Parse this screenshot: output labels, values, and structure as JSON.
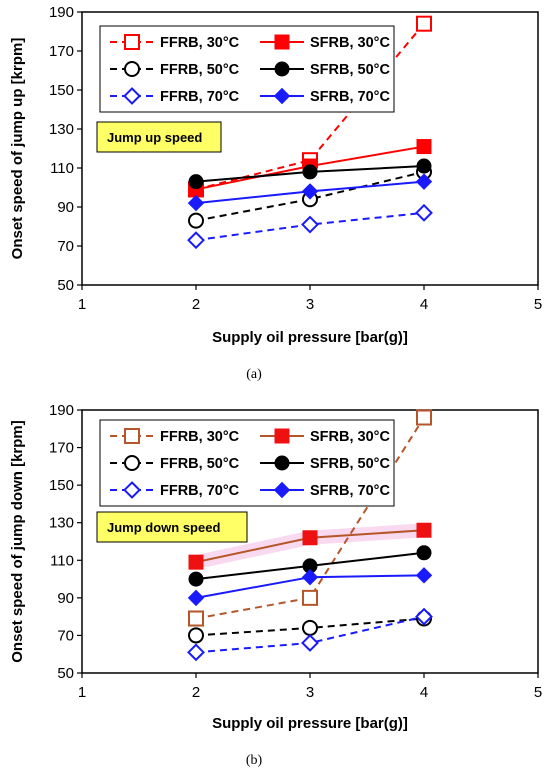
{
  "chart_data": [
    {
      "id": "a",
      "type": "line",
      "caption": "(a)",
      "annotation": "Jump up speed",
      "xlabel": "Supply oil pressure [bar(g)]",
      "ylabel": "Onset speed of jump up  [krpm]",
      "xlim": [
        1,
        5
      ],
      "ylim": [
        50,
        190
      ],
      "xticks": [
        1,
        2,
        3,
        4,
        5
      ],
      "yticks": [
        50,
        70,
        90,
        110,
        130,
        150,
        170,
        190
      ],
      "grid": false,
      "legend_position": "top-left",
      "series": [
        {
          "name": "FFRB, 30°C",
          "x": [
            2,
            3,
            4
          ],
          "y": [
            99,
            114,
            184
          ],
          "color": "#ff0000",
          "dash": true,
          "marker": "open-square"
        },
        {
          "name": "SFRB, 30°C",
          "x": [
            2,
            3,
            4
          ],
          "y": [
            99,
            111,
            121
          ],
          "color": "#ff0000",
          "dash": false,
          "marker": "filled-square"
        },
        {
          "name": "FFRB, 50°C",
          "x": [
            2,
            3,
            4
          ],
          "y": [
            83,
            94,
            108
          ],
          "color": "#000000",
          "dash": true,
          "marker": "open-circle"
        },
        {
          "name": "SFRB, 50°C",
          "x": [
            2,
            3,
            4
          ],
          "y": [
            103,
            108,
            111
          ],
          "color": "#000000",
          "dash": false,
          "marker": "filled-circle"
        },
        {
          "name": "FFRB, 70°C",
          "x": [
            2,
            3,
            4
          ],
          "y": [
            73,
            81,
            87
          ],
          "color": "#1a1aff",
          "dash": true,
          "marker": "open-diamond"
        },
        {
          "name": "SFRB, 70°C",
          "x": [
            2,
            3,
            4
          ],
          "y": [
            92,
            98,
            103
          ],
          "color": "#1a1aff",
          "dash": false,
          "marker": "filled-diamond"
        }
      ]
    },
    {
      "id": "b",
      "type": "line",
      "caption": "(b)",
      "annotation": "Jump down speed",
      "xlabel": "Supply oil pressure [bar(g)]",
      "ylabel": "Onset speed of jump down [krpm]",
      "xlim": [
        1,
        5
      ],
      "ylim": [
        50,
        190
      ],
      "xticks": [
        1,
        2,
        3,
        4,
        5
      ],
      "yticks": [
        50,
        70,
        90,
        110,
        130,
        150,
        170,
        190
      ],
      "grid": false,
      "legend_position": "top-left",
      "series": [
        {
          "name": "FFRB, 30°C",
          "x": [
            2,
            3,
            4
          ],
          "y": [
            79,
            90,
            186
          ],
          "color": "#b5562a",
          "dash": true,
          "marker": "open-square"
        },
        {
          "name": "SFRB, 30°C",
          "x": [
            2,
            3,
            4
          ],
          "y": [
            109,
            122,
            126
          ],
          "color": "#b5562a",
          "dash": false,
          "marker": "filled-square",
          "marker_color": "#ee1111"
        },
        {
          "name": "FFRB, 50°C",
          "x": [
            2,
            3,
            4
          ],
          "y": [
            70,
            74,
            79
          ],
          "color": "#000000",
          "dash": true,
          "marker": "open-circle"
        },
        {
          "name": "SFRB, 50°C",
          "x": [
            2,
            3,
            4
          ],
          "y": [
            100,
            107,
            114
          ],
          "color": "#000000",
          "dash": false,
          "marker": "filled-circle"
        },
        {
          "name": "FFRB, 70°C",
          "x": [
            2,
            3,
            4
          ],
          "y": [
            61,
            66,
            80
          ],
          "color": "#1a1aff",
          "dash": true,
          "marker": "open-diamond"
        },
        {
          "name": "SFRB, 70°C",
          "x": [
            2,
            3,
            4
          ],
          "y": [
            90,
            101,
            102
          ],
          "color": "#1a1aff",
          "dash": false,
          "marker": "filled-diamond"
        }
      ]
    }
  ],
  "colors": {
    "annotation_fill": "#ffff66",
    "highlight_band": "#f9d9ef"
  }
}
